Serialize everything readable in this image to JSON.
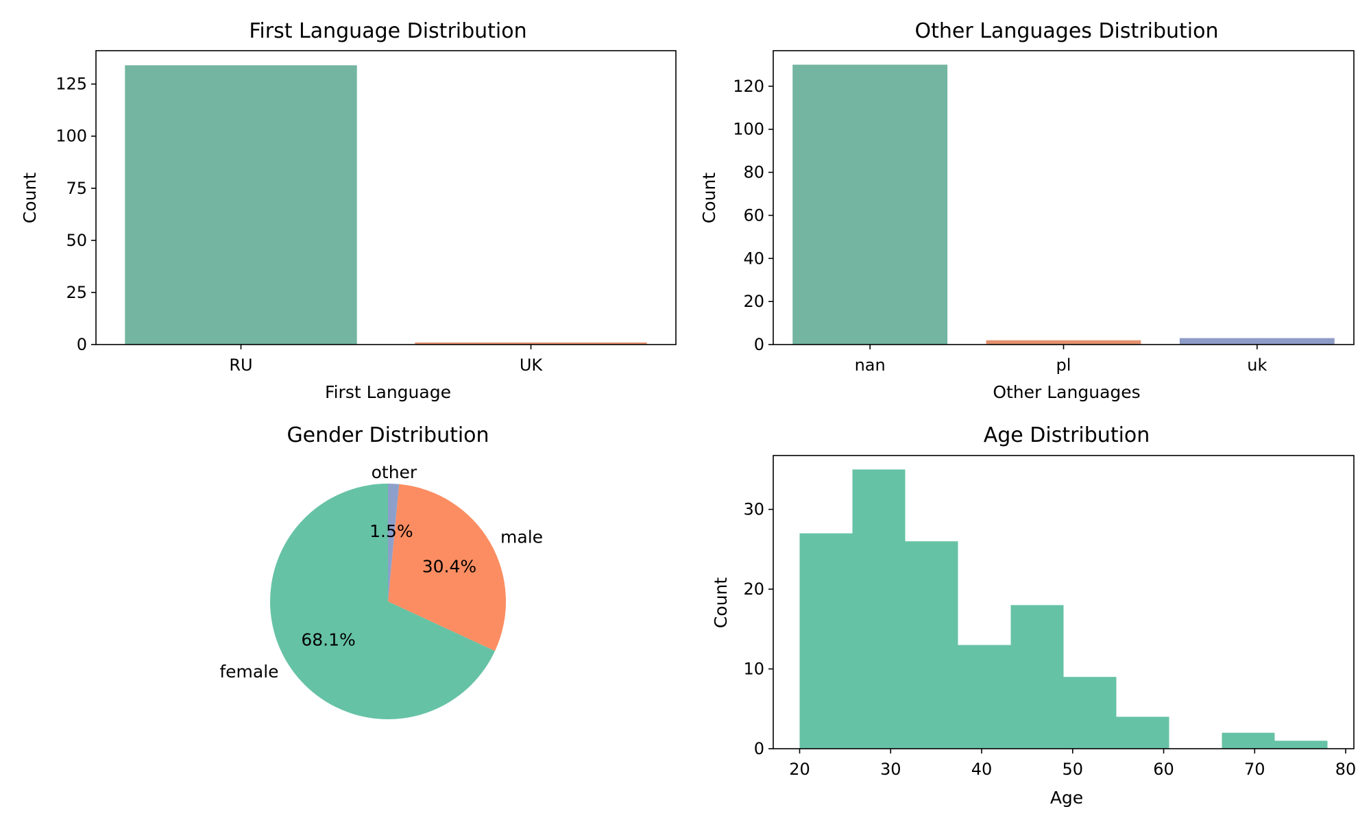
{
  "chart_data": [
    {
      "type": "bar",
      "title": "First Language Distribution",
      "xlabel": "First Language",
      "ylabel": "Count",
      "categories": [
        "RU",
        "UK"
      ],
      "values": [
        134,
        1
      ],
      "colors": [
        "#73b5a0",
        "#e5926e"
      ],
      "ylim": [
        0,
        141
      ],
      "yticks": [
        0,
        25,
        50,
        75,
        100,
        125
      ],
      "grid": false
    },
    {
      "type": "bar",
      "title": "Other Languages Distribution",
      "xlabel": "Other Languages",
      "ylabel": "Count",
      "categories": [
        "nan",
        "pl",
        "uk"
      ],
      "values": [
        130,
        2,
        3
      ],
      "colors": [
        "#73b5a0",
        "#e5926e",
        "#8e9cc7"
      ],
      "ylim": [
        0,
        136.5
      ],
      "yticks": [
        0,
        20,
        40,
        60,
        80,
        100,
        120
      ],
      "grid": false
    },
    {
      "type": "pie",
      "title": "Gender Distribution",
      "labels": [
        "female",
        "male",
        "other"
      ],
      "values": [
        68.1,
        30.4,
        1.5
      ],
      "percent_labels": [
        "68.1%",
        "30.4%",
        "1.5%"
      ],
      "colors": [
        "#66c2a5",
        "#fc8d62",
        "#8da0cb"
      ],
      "start_angle": 90
    },
    {
      "type": "bar",
      "subtype": "histogram",
      "title": "Age Distribution",
      "xlabel": "Age",
      "ylabel": "Count",
      "bin_edges": [
        20,
        25.8,
        31.6,
        37.4,
        43.2,
        49,
        54.8,
        60.6,
        66.4,
        72.2,
        78
      ],
      "values": [
        27,
        35,
        26,
        13,
        18,
        9,
        4,
        0,
        2,
        1
      ],
      "color": "#66c2a5",
      "xlim": [
        17.1,
        80.9
      ],
      "ylim": [
        0,
        36.75
      ],
      "xticks": [
        20,
        30,
        40,
        50,
        60,
        70,
        80
      ],
      "yticks": [
        0,
        10,
        20,
        30
      ],
      "grid": false
    }
  ]
}
